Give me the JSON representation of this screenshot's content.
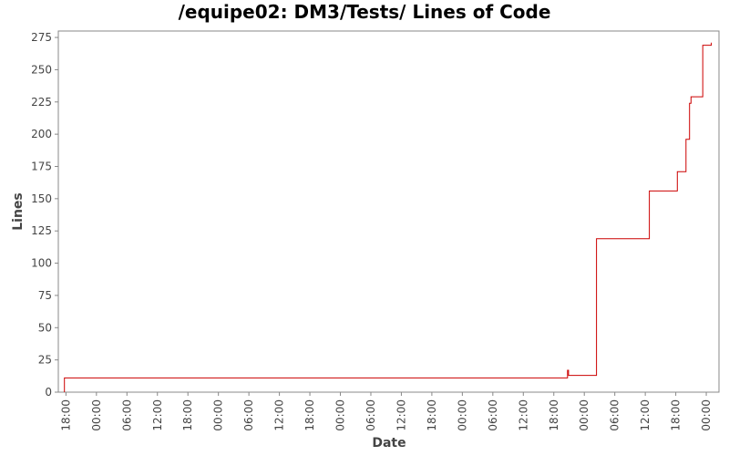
{
  "chart_data": {
    "type": "line",
    "title": "/equipe02: DM3/Tests/ Lines of Code",
    "xlabel": "Date",
    "ylabel": "Lines",
    "ylim": [
      0,
      280
    ],
    "yticks": [
      0,
      25,
      50,
      75,
      100,
      125,
      150,
      175,
      200,
      225,
      250,
      275
    ],
    "xticks": [
      "18:00",
      "00:00",
      "06:00",
      "12:00",
      "18:00",
      "00:00",
      "06:00",
      "12:00",
      "18:00",
      "00:00",
      "06:00",
      "12:00",
      "18:00",
      "00:00",
      "06:00",
      "12:00",
      "18:00",
      "00:00",
      "06:00",
      "12:00",
      "18:00",
      "00:00"
    ],
    "x_hours_range": [
      -1.5,
      128.5
    ],
    "grid": false,
    "series": [
      {
        "color": "#cc0000",
        "step": true,
        "points": [
          {
            "t": -0.3,
            "y": 0
          },
          {
            "t": -0.3,
            "y": 11
          },
          {
            "t": 98.7,
            "y": 11
          },
          {
            "t": 98.7,
            "y": 17
          },
          {
            "t": 98.9,
            "y": 17
          },
          {
            "t": 98.9,
            "y": 13
          },
          {
            "t": 104.4,
            "y": 13
          },
          {
            "t": 104.4,
            "y": 119
          },
          {
            "t": 114.8,
            "y": 119
          },
          {
            "t": 114.8,
            "y": 156
          },
          {
            "t": 120.3,
            "y": 156
          },
          {
            "t": 120.3,
            "y": 171
          },
          {
            "t": 122.0,
            "y": 171
          },
          {
            "t": 122.0,
            "y": 196
          },
          {
            "t": 122.7,
            "y": 196
          },
          {
            "t": 122.7,
            "y": 224
          },
          {
            "t": 123.0,
            "y": 224
          },
          {
            "t": 123.0,
            "y": 229
          },
          {
            "t": 125.3,
            "y": 229
          },
          {
            "t": 125.3,
            "y": 269
          },
          {
            "t": 127.0,
            "y": 269
          },
          {
            "t": 127.0,
            "y": 271
          }
        ]
      }
    ]
  }
}
